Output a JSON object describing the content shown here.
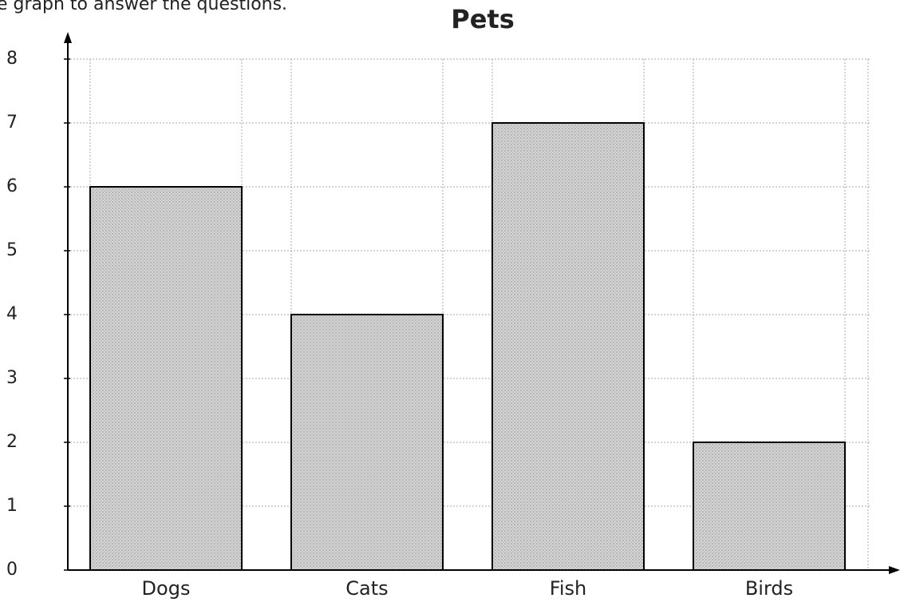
{
  "instruction": "e graph to answer the questions.",
  "chart_data": {
    "type": "bar",
    "title": "Pets",
    "categories": [
      "Dogs",
      "Cats",
      "Fish",
      "Birds"
    ],
    "values": [
      6,
      4,
      7,
      2
    ],
    "color": "#cccccc",
    "ylim": [
      0,
      8
    ],
    "yticks": [
      0,
      1,
      2,
      3,
      4,
      5,
      6,
      7,
      8
    ],
    "grid": true
  }
}
